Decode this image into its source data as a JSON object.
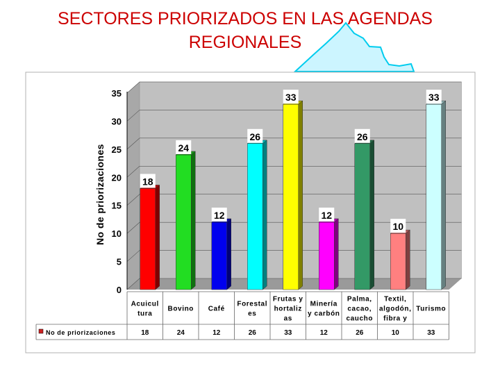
{
  "title": "SECTORES PRIORIZADOS  EN LAS AGENDAS REGIONALES",
  "chart_data": {
    "type": "bar",
    "categories": [
      [
        "Acuicul",
        "tura"
      ],
      [
        "Bovino"
      ],
      [
        "Café"
      ],
      [
        "Forestal",
        "es"
      ],
      [
        "Frutas y",
        "hortaliz",
        "as"
      ],
      [
        "Minería",
        "y carbón"
      ],
      [
        "Palma,",
        "cacao,",
        "caucho"
      ],
      [
        "Textil,",
        "algodón,",
        "fibra y"
      ],
      [
        "Turismo"
      ]
    ],
    "values": [
      18,
      24,
      12,
      26,
      33,
      12,
      26,
      10,
      33
    ],
    "colors": [
      "#ff0000",
      "#22dd22",
      "#0000ee",
      "#00ffff",
      "#ffff00",
      "#ff00ff",
      "#339966",
      "#ff8080",
      "#ccffff"
    ],
    "series_name": "No de priorizaciones",
    "ylabel": "No de priorizaciones",
    "ylim": [
      0,
      35
    ],
    "yticks": [
      0,
      5,
      10,
      15,
      20,
      25,
      30,
      35
    ],
    "legend_color": "#cc2222"
  }
}
